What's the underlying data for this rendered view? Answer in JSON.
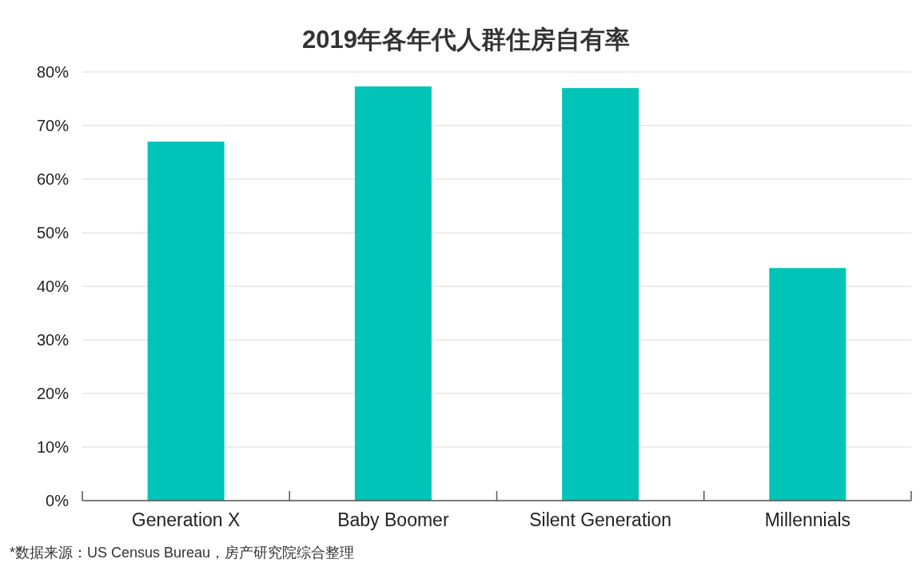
{
  "chart_data": {
    "type": "bar",
    "title": "2019年各年代人群住房自有率",
    "categories": [
      "Generation X",
      "Baby Boomer",
      "Silent Generation",
      "Millennials"
    ],
    "values": [
      67,
      77.3,
      77.0,
      43.4
    ],
    "color": "#00c4b8",
    "ylim": [
      0,
      80
    ],
    "yticks": [
      {
        "value": 0,
        "label": "0%"
      },
      {
        "value": 10,
        "label": "10%"
      },
      {
        "value": 20,
        "label": "20%"
      },
      {
        "value": 30,
        "label": "30%"
      },
      {
        "value": 40,
        "label": "40%"
      },
      {
        "value": 50,
        "label": "50%"
      },
      {
        "value": 60,
        "label": "60%"
      },
      {
        "value": 70,
        "label": "70%"
      },
      {
        "value": 80,
        "label": "80%"
      }
    ],
    "grid": "y",
    "annotations": [
      "*数据来源：US Census Bureau，房产研究院综合整理"
    ]
  }
}
